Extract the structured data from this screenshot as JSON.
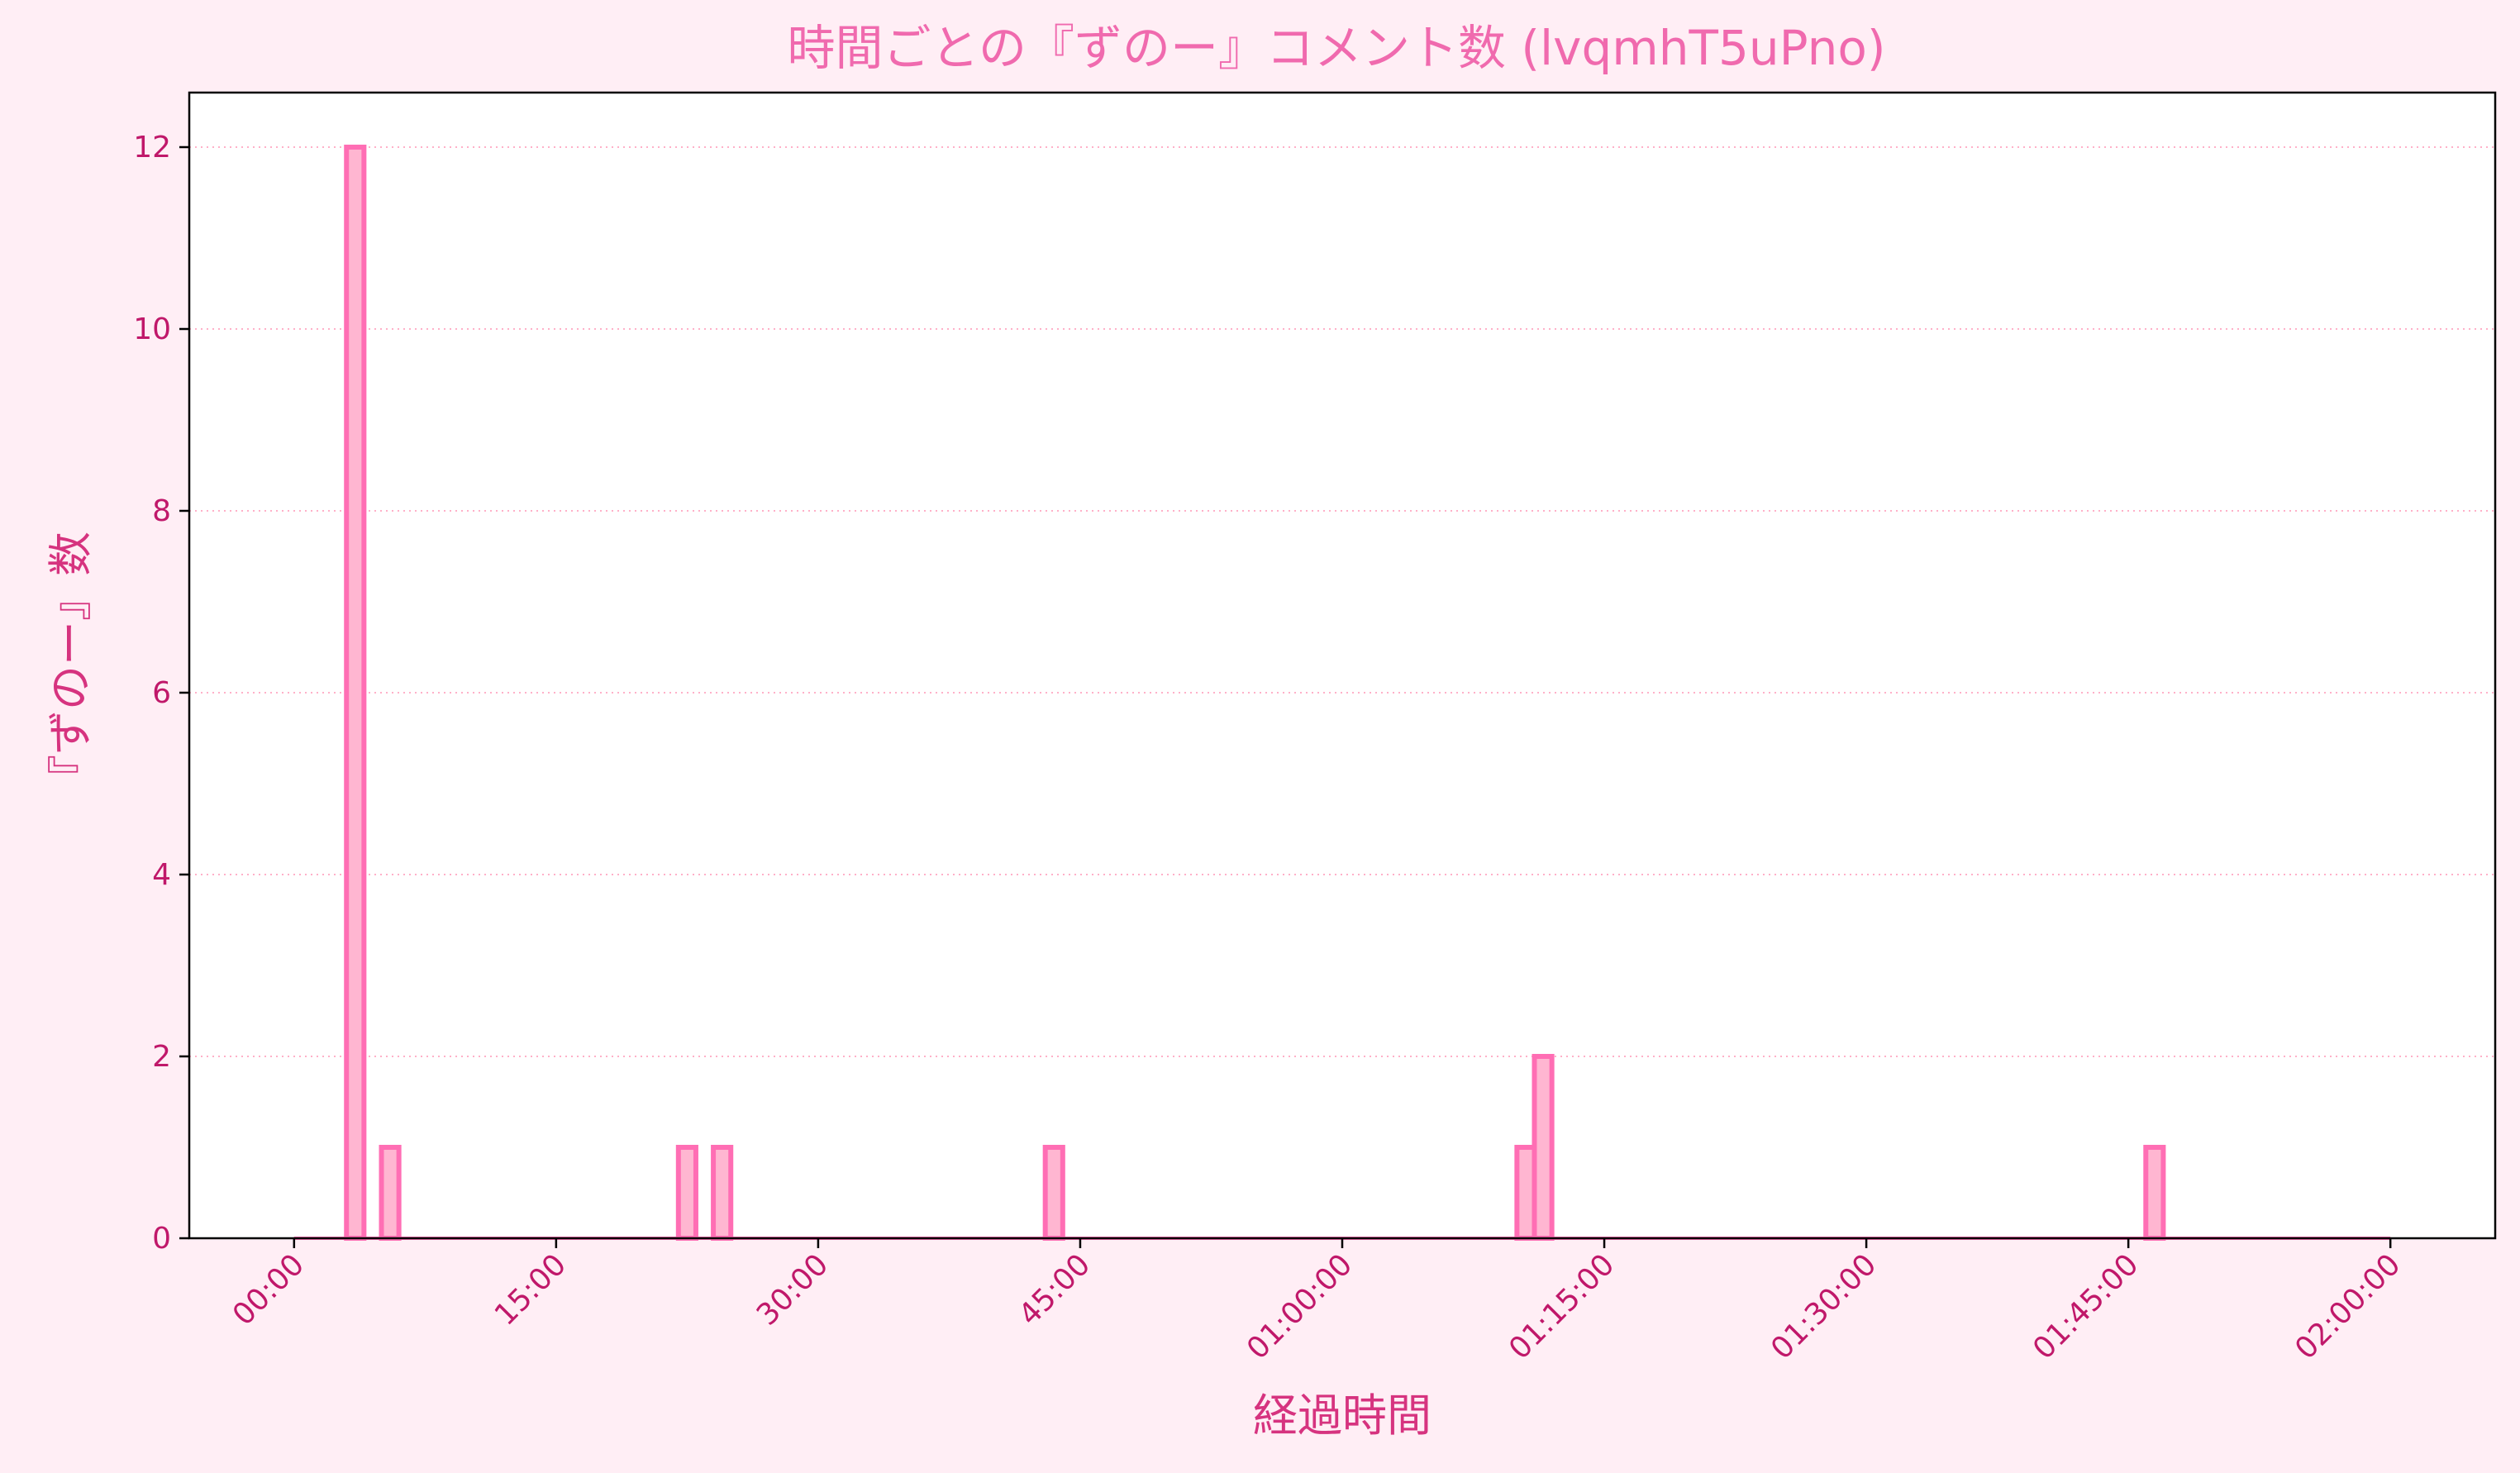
{
  "chart_data": {
    "type": "bar",
    "title": "時間ごとの『ずのー』コメント数 (lvqmhT5uPno)",
    "xlabel": "経過時間",
    "ylabel": "『ずのー』数",
    "x_unit": "minutes elapsed",
    "bin_minutes": 1,
    "xlim": [
      -6,
      126
    ],
    "ylim": [
      0,
      12.6
    ],
    "x_ticks": [
      {
        "value": 0,
        "label": "00:00"
      },
      {
        "value": 15,
        "label": "15:00"
      },
      {
        "value": 30,
        "label": "30:00"
      },
      {
        "value": 45,
        "label": "45:00"
      },
      {
        "value": 60,
        "label": "01:00:00"
      },
      {
        "value": 75,
        "label": "01:15:00"
      },
      {
        "value": 90,
        "label": "01:30:00"
      },
      {
        "value": 105,
        "label": "01:45:00"
      },
      {
        "value": 120,
        "label": "02:00:00"
      }
    ],
    "y_ticks": [
      0,
      2,
      4,
      6,
      8,
      10,
      12
    ],
    "series": [
      {
        "values": [
          {
            "x": 3,
            "y": 12
          },
          {
            "x": 5,
            "y": 1
          },
          {
            "x": 22,
            "y": 1
          },
          {
            "x": 24,
            "y": 1
          },
          {
            "x": 43,
            "y": 1
          },
          {
            "x": 70,
            "y": 1
          },
          {
            "x": 71,
            "y": 2
          },
          {
            "x": 106,
            "y": 1
          }
        ]
      }
    ],
    "data_range": [
      0,
      120
    ],
    "grid": "horizontal dotted",
    "legend": "none",
    "colors": {
      "bar_fill": "#FFB6D1",
      "bar_edge": "#FF6EB4",
      "grid": "#FFB0C8",
      "axis": "#000000",
      "tick_text": "#C0186A",
      "title_text": "#F06AAE",
      "label_text": "#D6337F",
      "page_bg": "#FFEEF5",
      "plot_bg": "#FFFFFF"
    }
  }
}
